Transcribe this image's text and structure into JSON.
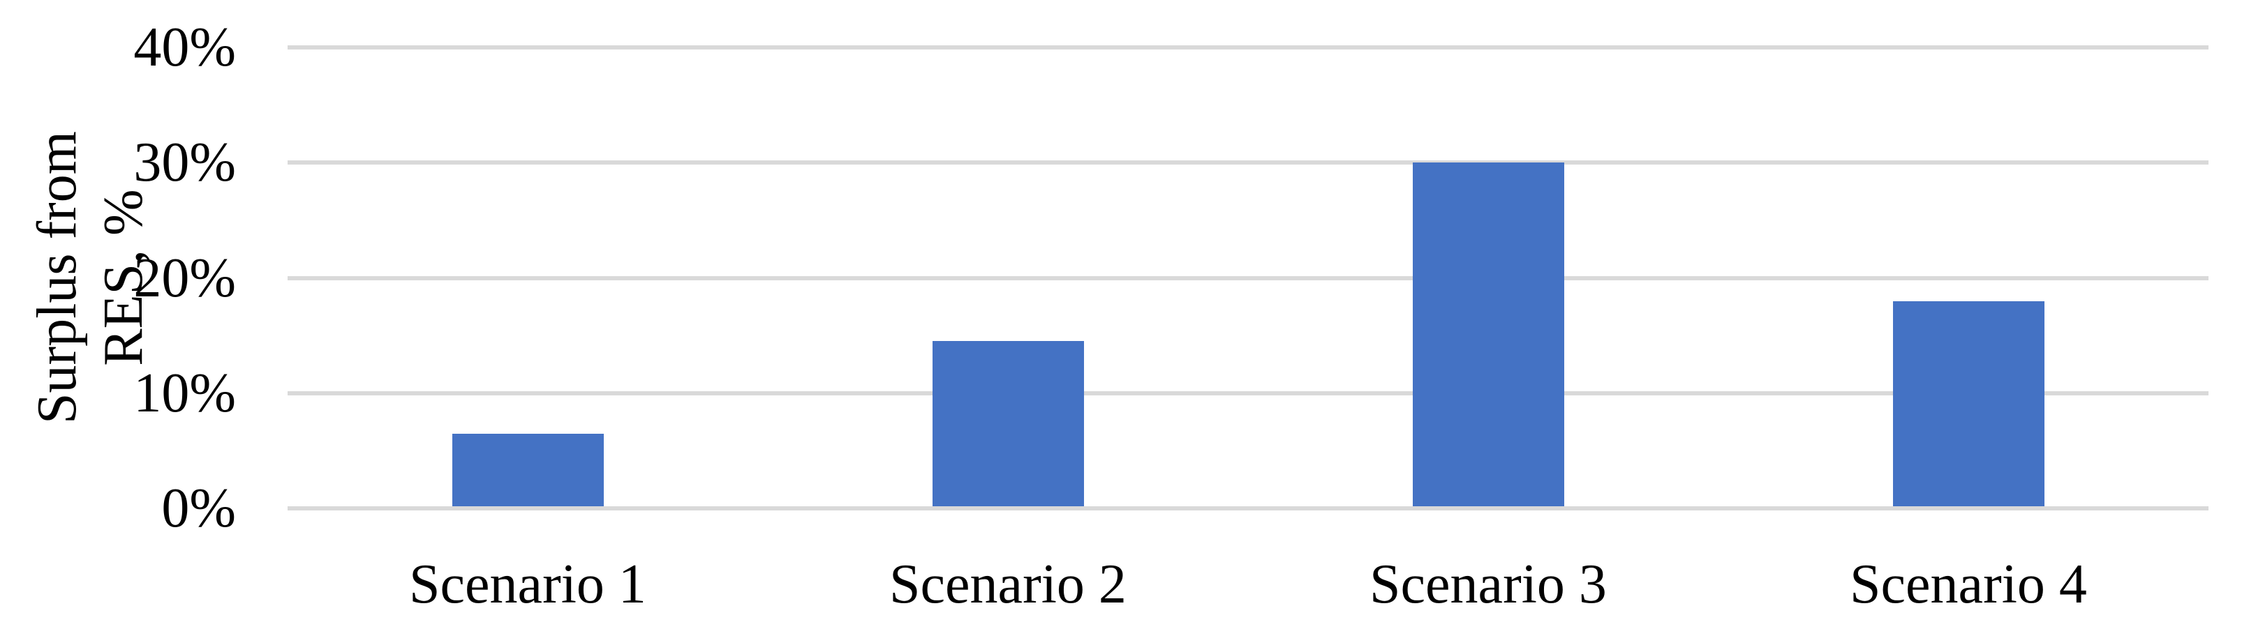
{
  "chart_data": {
    "type": "bar",
    "title": "",
    "categories": [
      "Scenario 1",
      "Scenario 2",
      "Scenario 3",
      "Scenario 4"
    ],
    "values": [
      6.5,
      14.5,
      30,
      18
    ],
    "value_unit": "%",
    "xlabel": "",
    "ylabel": "Surplus from RES, %",
    "ylabel_lines": [
      "Surplus from",
      "RES, %"
    ],
    "ylim": [
      0,
      40
    ],
    "yticks": [
      0,
      10,
      20,
      30,
      40
    ],
    "ytick_labels": [
      "0%",
      "10%",
      "20%",
      "30%",
      "40%"
    ],
    "grid": true,
    "legend": false,
    "bar_color": "#4472C4",
    "gridline_color": "#D9D9D9",
    "text_color": "#000000",
    "background_color": "#FFFFFF"
  }
}
